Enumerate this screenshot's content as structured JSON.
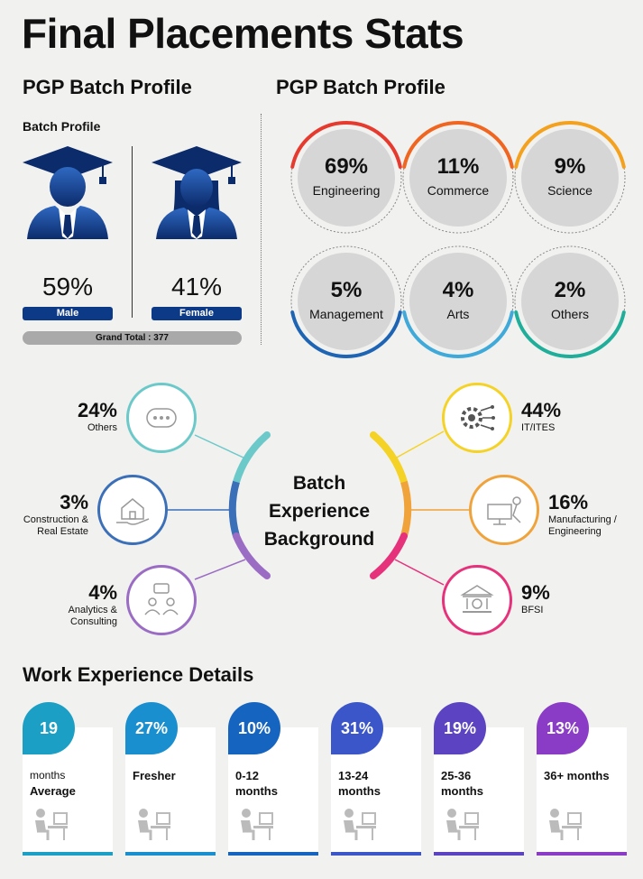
{
  "title": "Final Placements Stats",
  "left_section_title": "PGP Batch Profile",
  "right_section_title": "PGP Batch Profile",
  "batch_profile_label": "Batch Profile",
  "gender": {
    "male_pct": "59%",
    "male_label": "Male",
    "female_pct": "41%",
    "female_label": "Female",
    "grand_total": "Grand Total : 377",
    "pill_color": "#0d3a87"
  },
  "streams": [
    {
      "pct": "69%",
      "label": "Engineering",
      "color": "#e63a2e"
    },
    {
      "pct": "11%",
      "label": "Commerce",
      "color": "#f0651f"
    },
    {
      "pct": "9%",
      "label": "Science",
      "color": "#f4a11e"
    },
    {
      "pct": "5%",
      "label": "Management",
      "color": "#1e64b4"
    },
    {
      "pct": "4%",
      "label": "Arts",
      "color": "#3fa9d9"
    },
    {
      "pct": "2%",
      "label": "Others",
      "color": "#1fae9a"
    }
  ],
  "experience": {
    "center": [
      "Batch",
      "Experience",
      "Background"
    ],
    "left": [
      {
        "pct": "24%",
        "label_lines": [
          "Others"
        ],
        "icon": "dots-icon",
        "color": "#6cc9c9"
      },
      {
        "pct": "3%",
        "label_lines": [
          "Construction &",
          "Real Estate"
        ],
        "icon": "house-hand-icon",
        "color": "#3b6fb7"
      },
      {
        "pct": "4%",
        "label_lines": [
          "Analytics &",
          "Consulting"
        ],
        "icon": "people-chat-icon",
        "color": "#9b6cc4"
      }
    ],
    "right": [
      {
        "pct": "44%",
        "label_lines": [
          "IT/ITES"
        ],
        "icon": "gear-circuit-icon",
        "color": "#f5d226"
      },
      {
        "pct": "16%",
        "label_lines": [
          "Manufacturing /",
          "Engineering"
        ],
        "icon": "factory-robot-icon",
        "color": "#f0a33b"
      },
      {
        "pct": "9%",
        "label_lines": [
          "BFSI"
        ],
        "icon": "bank-icon",
        "color": "#e6317b"
      }
    ]
  },
  "work_title": "Work Experience Details",
  "work_cards": [
    {
      "value": "19",
      "line1": "months",
      "line2": "Average",
      "color": "#1b9fc4",
      "icon": "desk-worker-icon"
    },
    {
      "value": "27%",
      "line1": "Fresher",
      "line2": "",
      "color": "#1a8fd0",
      "icon": "desk-worker-icon"
    },
    {
      "value": "10%",
      "line1": "0-12",
      "line2": "months",
      "color": "#1565c0",
      "icon": "desk-worker-icon"
    },
    {
      "value": "31%",
      "line1": "13-24",
      "line2": "months",
      "color": "#3a56c8",
      "icon": "desk-worker-icon"
    },
    {
      "value": "19%",
      "line1": "25-36",
      "line2": "months",
      "color": "#5b43c2",
      "icon": "desk-worker-icon"
    },
    {
      "value": "13%",
      "line1": "36+ months",
      "line2": "",
      "color": "#8a3cc7",
      "icon": "desk-worker-icon"
    }
  ]
}
